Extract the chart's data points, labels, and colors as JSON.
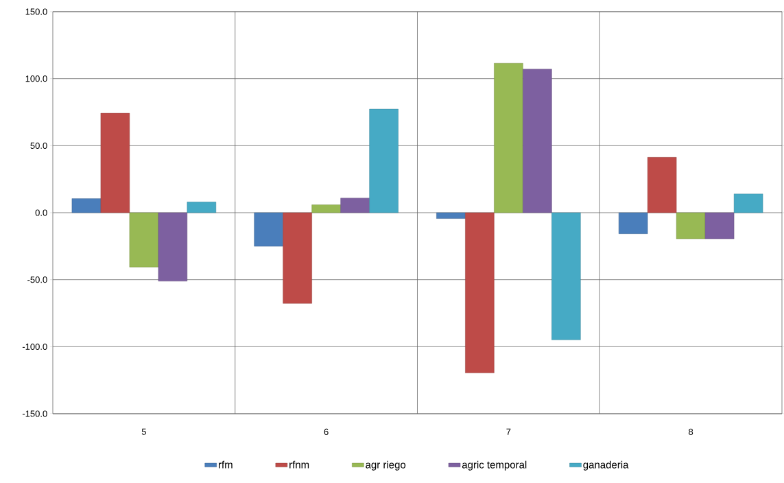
{
  "chart_data": {
    "type": "bar",
    "categories": [
      "5",
      "6",
      "7",
      "8"
    ],
    "series": [
      {
        "name": "rfm",
        "color": "#4a7ebb",
        "values": [
          10.5,
          -25.1,
          -4.4,
          -15.7
        ]
      },
      {
        "name": "rfnm",
        "color": "#be4b48",
        "values": [
          74.2,
          -67.7,
          -119.6,
          41.3
        ]
      },
      {
        "name": "agr riego",
        "color": "#98b954",
        "values": [
          -40.6,
          5.9,
          111.5,
          -19.5
        ]
      },
      {
        "name": "agric temporal",
        "color": "#7d60a0",
        "values": [
          -51.1,
          10.9,
          107.1,
          -19.5
        ]
      },
      {
        "name": "ganaderia",
        "color": "#46aac5",
        "values": [
          8.0,
          77.3,
          -94.9,
          14.0
        ]
      }
    ],
    "ylim": [
      -150,
      150
    ],
    "yticks": [
      {
        "value": -150,
        "label": "-150.0"
      },
      {
        "value": -100,
        "label": "-100.0"
      },
      {
        "value": -50,
        "label": "-50.0"
      },
      {
        "value": 0,
        "label": "0.0"
      },
      {
        "value": 50,
        "label": "50.0"
      },
      {
        "value": 100,
        "label": "100.0"
      },
      {
        "value": 150,
        "label": "150.0"
      }
    ],
    "grid": true,
    "legend": "bottom"
  }
}
